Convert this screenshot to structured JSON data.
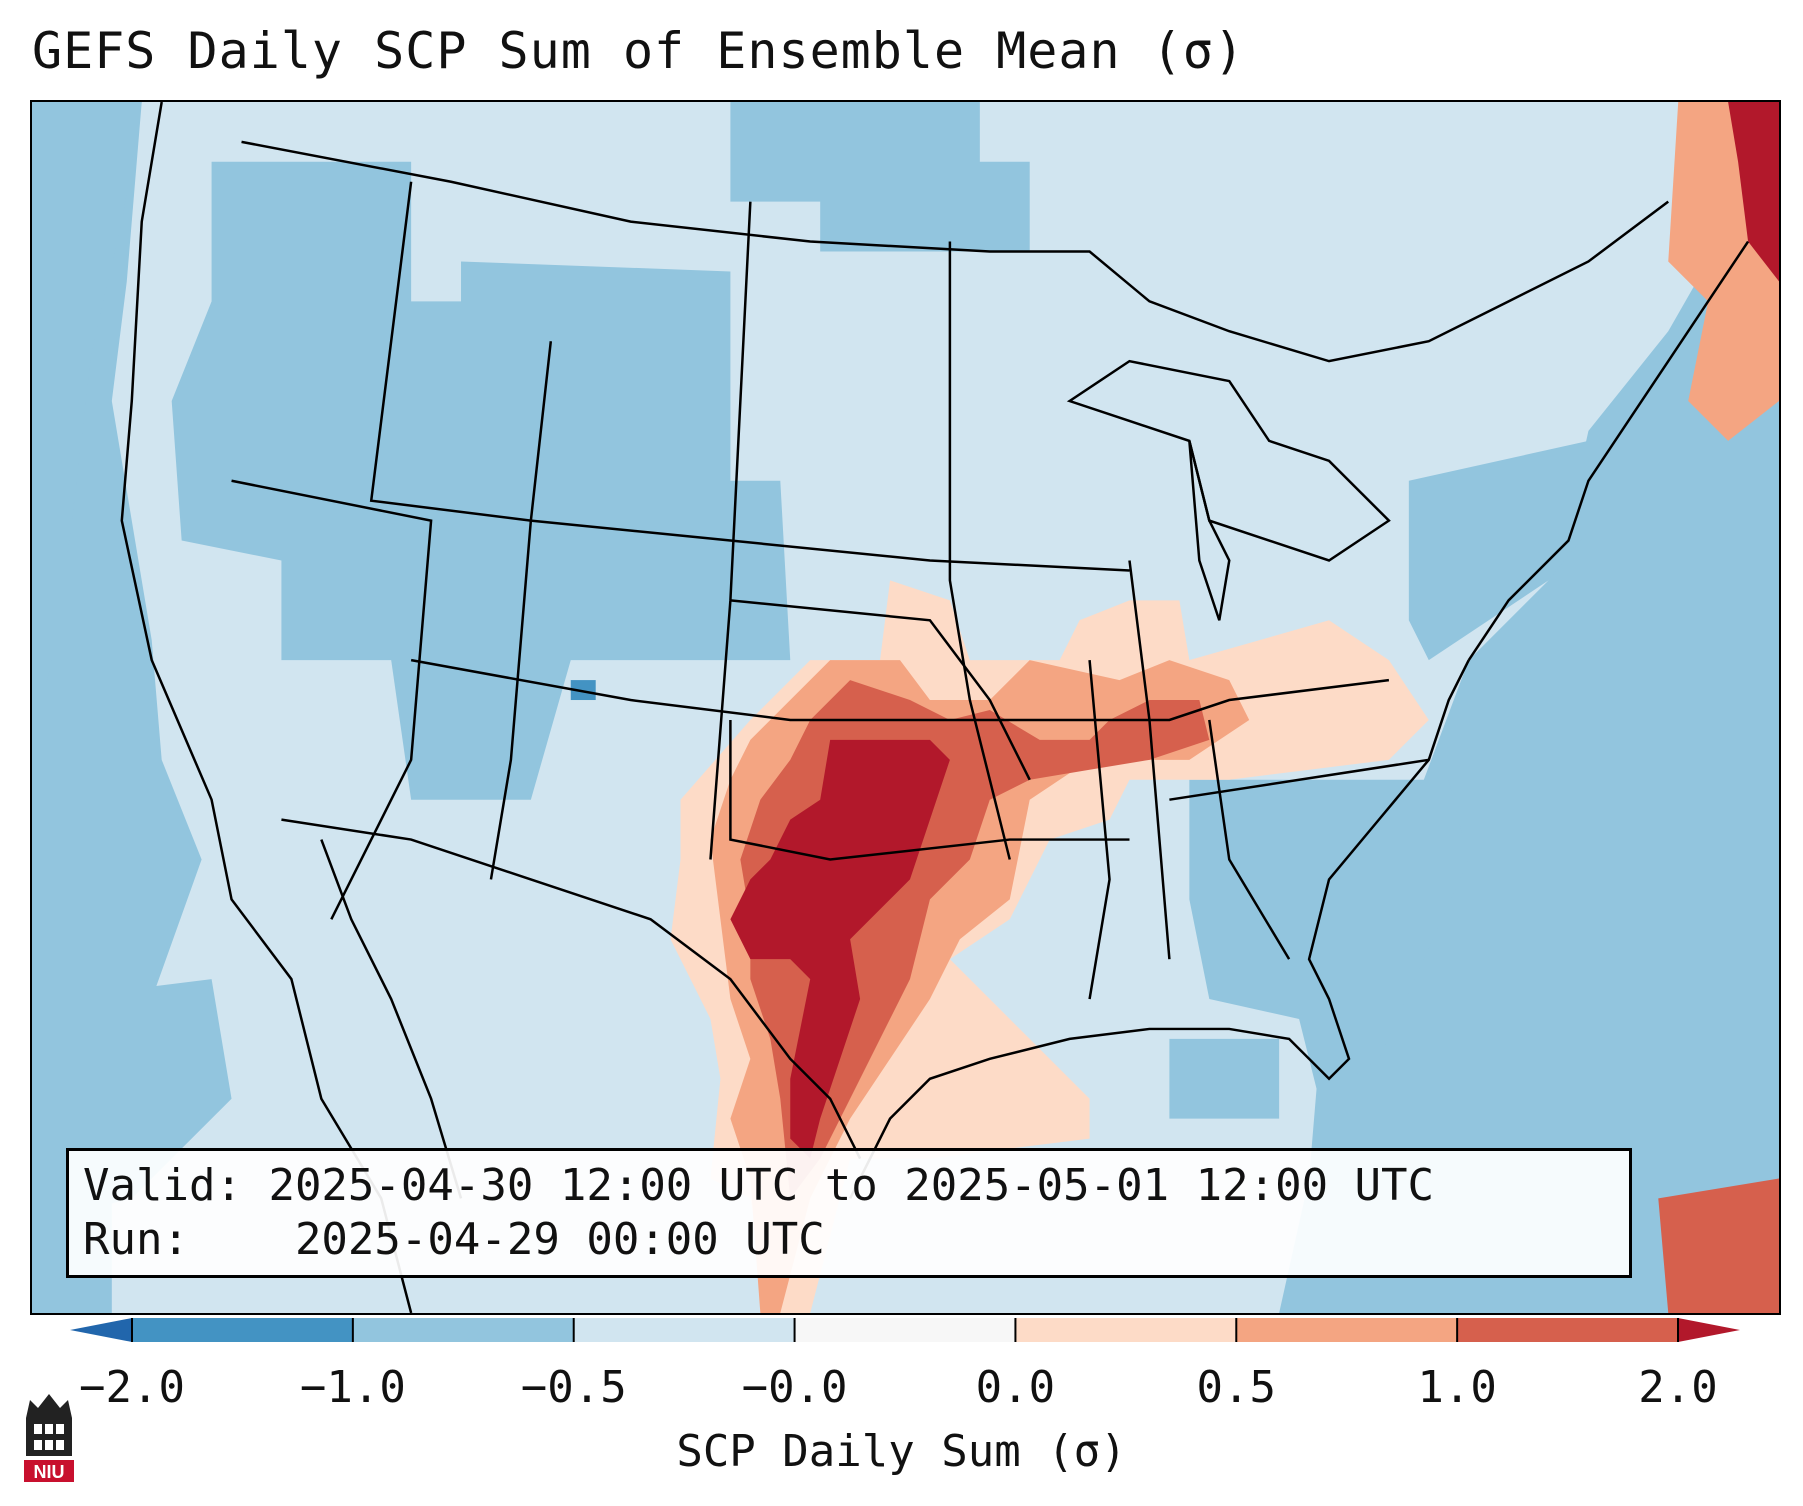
{
  "title": "GEFS Daily SCP Sum of Ensemble Mean (σ)",
  "info": {
    "valid_label": "Valid:",
    "valid_value": "2025-04-30 12:00 UTC to 2025-05-01 12:00 UTC",
    "run_label": "Run:",
    "run_value": "2025-04-29 00:00 UTC"
  },
  "colorbar": {
    "label": "SCP Daily Sum (σ)",
    "ticks": [
      "−2.0",
      "−1.0",
      "−0.5",
      "−0.0",
      "0.0",
      "0.5",
      "1.0",
      "2.0"
    ],
    "colors": {
      "below": "#2166ac",
      "b0": "#4393c3",
      "b1": "#92c5de",
      "b2": "#d1e5f0",
      "b3": "#f7f7f7",
      "b4": "#fddbc7",
      "b5": "#f4a582",
      "b6": "#d6604d",
      "above": "#b2182b"
    },
    "extend": "both"
  },
  "map": {
    "region": "Contiguous United States",
    "ocean_color": "#92c5de",
    "land_background": "#d1e5f0",
    "max_anomaly_region": "Oklahoma / Texas",
    "positive_anomaly_regions": [
      "Southern Plains",
      "Ozarks",
      "Ohio Valley",
      "Gulf Coast of Texas",
      "Southeast Canada Maritimes"
    ]
  },
  "logo": {
    "name": "niu-logo-icon",
    "text": "NIU"
  }
}
